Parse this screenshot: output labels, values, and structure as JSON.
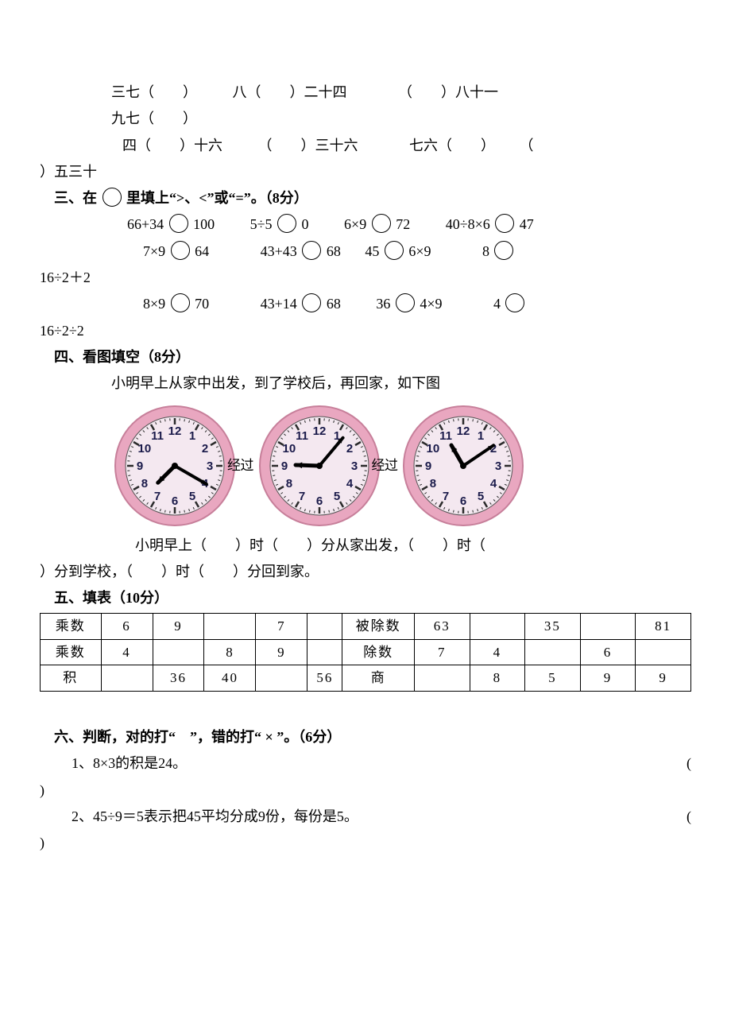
{
  "section2_lines": {
    "l1": {
      "a": "三七（　　）",
      "b": "八（　　）二十四",
      "c": "（　　）八十一"
    },
    "l2": {
      "a": "九七（　　）"
    },
    "l3": {
      "a": "四（　　）十六",
      "b": "（　　）三十六",
      "c": "七六（　　）",
      "d": "（"
    },
    "l3_cont": "）五三十"
  },
  "section3": {
    "title": "三、在",
    "title_after": "里填上“>、<”或“=”。（8分）",
    "row1": {
      "a": "66+34",
      "b": "100",
      "c": "5÷5",
      "d": "0",
      "e": "6×9",
      "f": "72",
      "g": "40÷8×6",
      "h": "47"
    },
    "row2": {
      "a": "7×9",
      "b": "64",
      "c": "43+43",
      "d": "68",
      "e": "45",
      "f": "6×9",
      "g": "8"
    },
    "row2_cont": "16÷2＋2",
    "row3": {
      "a": "8×9",
      "b": "70",
      "c": "43+14",
      "d": "68",
      "e": "36",
      "f": "4×9",
      "g": "4"
    },
    "row3_cont": "16÷2÷2"
  },
  "section4": {
    "title": "四、看图填空（8分）",
    "intro": "小明早上从家中出发，到了学校后，再回家，如下图",
    "arrow1": "经过（    ",
    "arrow2": "经过（    ",
    "clock_style": {
      "face_fill": "#f4e8f0",
      "ring_outer": "#e9a7c0",
      "ring_shadow": "#c77f9a",
      "tick_color": "#2b2b2b",
      "center_color": "#000000",
      "number_color": "#1a1a4a"
    },
    "clocks": [
      {
        "hour_angle": 225,
        "minute_angle": 120
      },
      {
        "hour_angle": 272,
        "minute_angle": 40
      },
      {
        "hour_angle": 330,
        "minute_angle": 56
      }
    ],
    "blank_line1": "小明早上（　　）时（　　）分从家出发，（　　）时（",
    "blank_line2": "）分到学校，（　　）时（　　）分回到家。"
  },
  "section5": {
    "title": "五、填表（10分）",
    "left": {
      "r1": [
        "乘数",
        "6",
        "9",
        "",
        "7",
        ""
      ],
      "r2": [
        "乘数",
        "4",
        "",
        "8",
        "9",
        ""
      ],
      "r3": [
        "积",
        "",
        "36",
        "40",
        "",
        "56"
      ]
    },
    "right": {
      "r1": [
        "被除数",
        "63",
        "",
        "35",
        "",
        "81"
      ],
      "r2": [
        "除数",
        "7",
        "4",
        "",
        "6",
        ""
      ],
      "r3": [
        "商",
        "",
        "8",
        "5",
        "9",
        "9"
      ]
    }
  },
  "section6": {
    "title": "六、判断，对的打“　”，错的打“ × ”。（6分）",
    "q1": "1、8×3的积是24。",
    "q2": "2、45÷9＝5表示把45平均分成9份，每份是5。",
    "paren_open": "(",
    "paren_close": ")"
  }
}
